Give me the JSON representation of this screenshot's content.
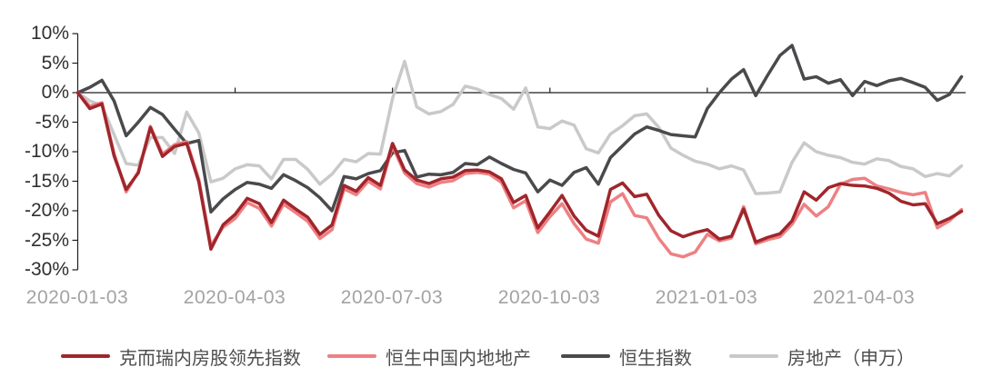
{
  "chart": {
    "y_axis": {
      "tick_labels": [
        "10%",
        "5%",
        "0%",
        "-5%",
        "-10%",
        "-15%",
        "-20%",
        "-25%",
        "-30%"
      ],
      "tick_values": [
        10,
        5,
        0,
        -5,
        -10,
        -15,
        -20,
        -25,
        -30
      ]
    },
    "x_axis": {
      "tick_labels": [
        "2020-01-03",
        "2020-04-03",
        "2020-07-03",
        "2020-10-03",
        "2021-01-03",
        "2021-04-03"
      ]
    },
    "legend": [
      {
        "label": "克而瑞内房股领先指数",
        "color": "#a0262c"
      },
      {
        "label": "恒生中国内地地产",
        "color": "#ee8084"
      },
      {
        "label": "恒生指数",
        "color": "#4a4a4d"
      },
      {
        "label": "房地产（申万）",
        "color": "#c9c9c9"
      }
    ],
    "colors": {
      "axis_line": "#1f1f1f",
      "y_label_text": "#2f2f2f",
      "x_label_text": "#a3a3a3",
      "legend_text": "#4d4d4d",
      "background": "#ffffff"
    }
  },
  "chart_data": {
    "type": "line",
    "unit": "percent",
    "x_unit": "weekly points from 2020-01-03 to 2021-05-28",
    "ylim": [
      -30,
      10
    ],
    "grid": false,
    "legend_position": "bottom",
    "x_ticks": [
      {
        "pos": 0,
        "label": "2020-01-03"
      },
      {
        "pos": 13,
        "label": "2020-04-03"
      },
      {
        "pos": 26,
        "label": "2020-07-03"
      },
      {
        "pos": 39,
        "label": "2020-10-03"
      },
      {
        "pos": 52,
        "label": "2021-01-03"
      },
      {
        "pos": 65,
        "label": "2021-04-03"
      }
    ],
    "series": [
      {
        "name": "克而瑞内房股领先指数",
        "color": "#a0262c",
        "values": [
          0,
          -2.7,
          -1.9,
          -10.7,
          -16.4,
          -13.6,
          -5.9,
          -10.8,
          -9.1,
          -8.6,
          -15.1,
          -26.5,
          -22.4,
          -20.6,
          -17.9,
          -18.8,
          -22.0,
          -18.2,
          -19.7,
          -21.1,
          -24.0,
          -22.4,
          -15.7,
          -16.7,
          -14.4,
          -15.7,
          -8.6,
          -13.1,
          -14.8,
          -15.4,
          -14.6,
          -14.3,
          -13.2,
          -13.1,
          -13.4,
          -14.6,
          -18.6,
          -17.4,
          -22.9,
          -20.2,
          -17.4,
          -20.9,
          -23.3,
          -24.3,
          -16.4,
          -15.3,
          -17.6,
          -17.2,
          -20.8,
          -23.4,
          -24.4,
          -23.7,
          -23.2,
          -24.8,
          -24.3,
          -19.7,
          -25.3,
          -24.5,
          -23.9,
          -21.7,
          -16.8,
          -18.2,
          -16.1,
          -15.4,
          -15.7,
          -15.8,
          -16.2,
          -17.0,
          -18.4,
          -19.0,
          -18.8,
          -22.2,
          -21.3,
          -20.1
        ]
      },
      {
        "name": "恒生中国内地地产",
        "color": "#ee8084",
        "values": [
          0,
          -2.3,
          -1.7,
          -10.3,
          -16.8,
          -13.4,
          -5.7,
          -10.4,
          -8.8,
          -8.3,
          -14.7,
          -25.9,
          -22.8,
          -21.3,
          -18.6,
          -19.6,
          -22.6,
          -18.9,
          -20.3,
          -21.8,
          -24.7,
          -23.2,
          -16.3,
          -17.3,
          -15.0,
          -16.3,
          -9.0,
          -13.6,
          -15.4,
          -16.0,
          -15.2,
          -14.9,
          -13.7,
          -13.5,
          -13.8,
          -15.2,
          -19.5,
          -18.3,
          -23.7,
          -21.0,
          -18.8,
          -22.2,
          -24.8,
          -25.5,
          -18.5,
          -17.1,
          -20.8,
          -21.2,
          -24.7,
          -27.3,
          -27.8,
          -27.0,
          -24.0,
          -25.1,
          -24.6,
          -19.3,
          -25.6,
          -24.9,
          -24.4,
          -22.3,
          -18.9,
          -20.9,
          -19.3,
          -15.5,
          -14.7,
          -14.5,
          -15.8,
          -16.3,
          -16.9,
          -17.3,
          -16.9,
          -22.9,
          -21.7,
          -19.8
        ]
      },
      {
        "name": "恒生指数",
        "color": "#4a4a4d",
        "values": [
          0,
          0.9,
          2.1,
          -1.4,
          -7.3,
          -5.0,
          -2.5,
          -3.7,
          -6.2,
          -8.6,
          -8.1,
          -20.2,
          -18.0,
          -16.4,
          -15.2,
          -15.5,
          -16.2,
          -13.9,
          -14.9,
          -16.1,
          -17.8,
          -20.0,
          -14.2,
          -14.6,
          -13.7,
          -13.2,
          -10.2,
          -9.8,
          -14.3,
          -13.8,
          -13.9,
          -13.5,
          -12.0,
          -12.2,
          -10.9,
          -12.0,
          -13.0,
          -13.6,
          -16.8,
          -14.8,
          -15.7,
          -13.5,
          -12.7,
          -15.5,
          -11.0,
          -9.0,
          -7.0,
          -5.8,
          -6.4,
          -7.1,
          -7.3,
          -7.5,
          -2.7,
          0.0,
          2.3,
          3.9,
          -0.5,
          3.0,
          6.3,
          8.0,
          2.3,
          2.7,
          1.6,
          2.2,
          -0.5,
          1.9,
          1.2,
          2.0,
          2.4,
          1.7,
          0.9,
          -1.3,
          -0.3,
          2.7
        ]
      },
      {
        "name": "房地产（申万）",
        "color": "#c9c9c9",
        "values": [
          0,
          -1.4,
          -2.2,
          -7.1,
          -12.0,
          -12.3,
          -7.6,
          -7.6,
          -10.3,
          -3.3,
          -6.8,
          -15.1,
          -14.5,
          -12.9,
          -12.2,
          -12.4,
          -14.6,
          -11.3,
          -11.3,
          -13.0,
          -15.5,
          -13.8,
          -11.3,
          -11.7,
          -10.3,
          -10.4,
          -1.0,
          5.3,
          -2.4,
          -3.6,
          -3.2,
          -2.0,
          1.1,
          0.6,
          -0.3,
          -1.0,
          -2.8,
          0.8,
          -5.8,
          -6.1,
          -4.8,
          -5.5,
          -9.5,
          -10.2,
          -7.0,
          -5.6,
          -3.9,
          -3.6,
          -5.9,
          -9.4,
          -10.6,
          -11.6,
          -12.1,
          -12.9,
          -12.4,
          -13.1,
          -17.1,
          -17.0,
          -16.8,
          -11.8,
          -8.5,
          -10.0,
          -10.6,
          -11.0,
          -11.8,
          -12.1,
          -11.2,
          -11.5,
          -12.5,
          -12.9,
          -14.2,
          -13.7,
          -14.1,
          -12.4
        ]
      }
    ]
  }
}
